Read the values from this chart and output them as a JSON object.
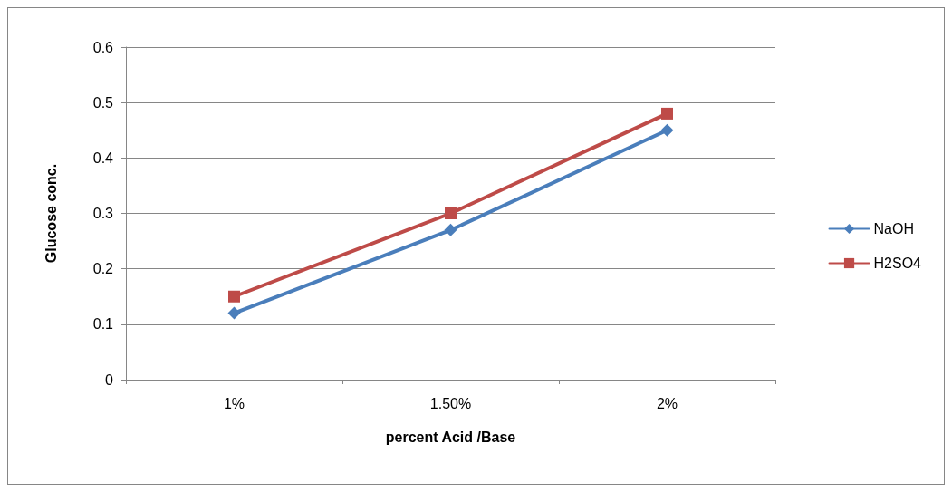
{
  "chart_data": {
    "type": "line",
    "xlabel": "percent Acid /Base",
    "ylabel": "Glucose conc.",
    "categories": [
      "1%",
      "1.50%",
      "2%"
    ],
    "series": [
      {
        "name": "NaOH",
        "color": "#4a7ebb",
        "marker": "diamond",
        "values": [
          0.12,
          0.27,
          0.45
        ]
      },
      {
        "name": "H2SO4",
        "color": "#be4b48",
        "marker": "square",
        "values": [
          0.15,
          0.3,
          0.48
        ]
      }
    ],
    "ylim": [
      0,
      0.6
    ],
    "yticks": [
      0,
      0.1,
      0.2,
      0.3,
      0.4,
      0.5,
      0.6
    ],
    "grid": "y",
    "legend": "right",
    "line_style": "solid"
  }
}
